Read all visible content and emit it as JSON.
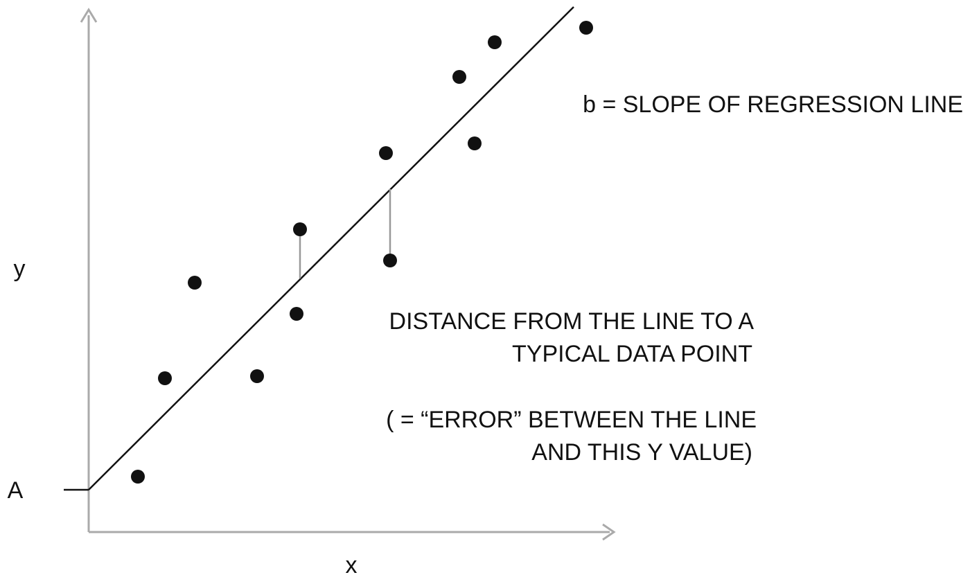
{
  "axes": {
    "y_label": "y",
    "x_label": "x",
    "intercept_label": "A"
  },
  "slope_label": "b = SLOPE OF REGRESSION LINE",
  "distance_note": {
    "lines": [
      "DISTANCE FROM THE LINE TO A",
      "TYPICAL DATA POINT"
    ]
  },
  "error_note": {
    "lines": [
      "( = “ERROR” BETWEEN THE LINE",
      "AND THIS Y VALUE)"
    ]
  }
}
